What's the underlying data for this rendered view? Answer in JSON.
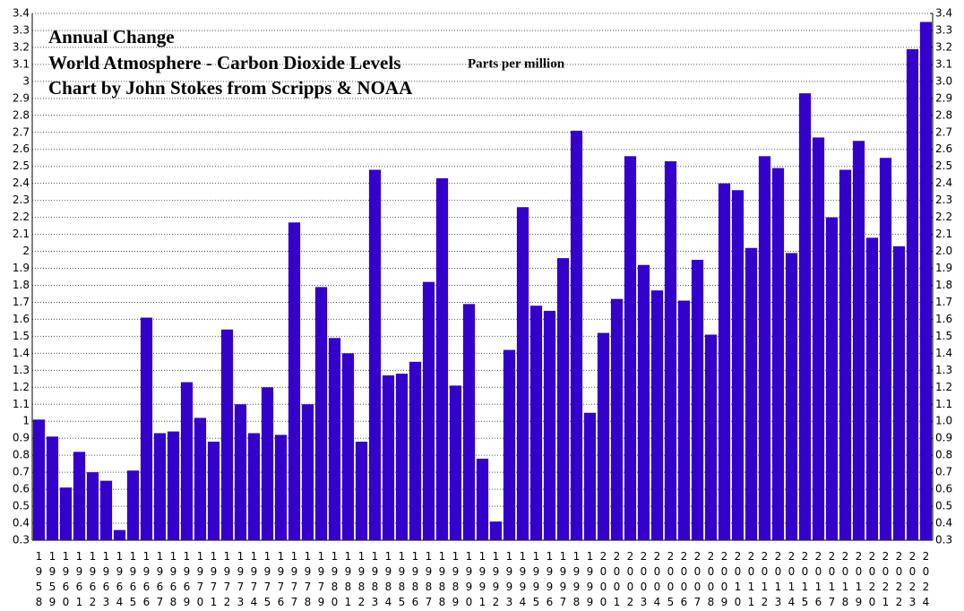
{
  "chart_data": {
    "type": "bar",
    "title": "Annual Change",
    "subtitle": "World Atmosphere - Carbon Dioxide Levels",
    "unit_label": "Parts per million",
    "credit": "Chart by John Stokes from Scripps & NOAA",
    "categories": [
      "1958",
      "1959",
      "1960",
      "1961",
      "1962",
      "1963",
      "1964",
      "1965",
      "1966",
      "1967",
      "1968",
      "1969",
      "1970",
      "1971",
      "1972",
      "1973",
      "1974",
      "1975",
      "1976",
      "1977",
      "1978",
      "1979",
      "1980",
      "1981",
      "1982",
      "1983",
      "1984",
      "1985",
      "1986",
      "1987",
      "1988",
      "1989",
      "1990",
      "1991",
      "1992",
      "1993",
      "1994",
      "1995",
      "1996",
      "1997",
      "1998",
      "1999",
      "2000",
      "2001",
      "2002",
      "2003",
      "2004",
      "2005",
      "2006",
      "2007",
      "2008",
      "2009",
      "2010",
      "2011",
      "2012",
      "2013",
      "2014",
      "2015",
      "2016",
      "2017",
      "2018",
      "2019",
      "2020",
      "2021",
      "2022",
      "2023",
      "2024"
    ],
    "values": [
      1.01,
      0.91,
      0.61,
      0.82,
      0.7,
      0.65,
      0.36,
      0.71,
      1.61,
      0.93,
      0.94,
      1.23,
      1.02,
      0.88,
      1.54,
      1.1,
      0.93,
      1.2,
      0.92,
      2.17,
      1.1,
      1.79,
      1.49,
      1.4,
      0.88,
      2.48,
      1.27,
      1.28,
      1.35,
      1.82,
      2.43,
      1.21,
      1.69,
      0.78,
      0.41,
      1.42,
      2.26,
      1.68,
      1.65,
      1.96,
      2.71,
      1.05,
      1.52,
      1.72,
      2.56,
      1.92,
      1.77,
      2.53,
      1.71,
      1.95,
      1.51,
      2.4,
      2.36,
      2.02,
      2.56,
      2.49,
      1.99,
      2.93,
      2.67,
      2.2,
      2.48,
      2.65,
      2.08,
      2.55,
      2.03,
      3.19,
      3.35
    ],
    "color": "#3300cc",
    "ylim": [
      0.3,
      3.4
    ],
    "yticks": [
      0.3,
      0.4,
      0.5,
      0.6,
      0.7,
      0.8,
      0.9,
      1,
      1.1,
      1.2,
      1.3,
      1.4,
      1.5,
      1.6,
      1.7,
      1.8,
      1.9,
      2,
      2.1,
      2.2,
      2.3,
      2.4,
      2.5,
      2.6,
      2.7,
      2.8,
      2.9,
      3,
      3.1,
      3.2,
      3.3,
      3.4
    ],
    "y2lim": [
      0.3,
      3.4
    ],
    "y2ticks": [
      0.3,
      0.4,
      0.5,
      0.6,
      0.7,
      0.8,
      0.9,
      {
        "value": 1,
        "label": "1.0"
      },
      1.1,
      1.2,
      1.3,
      1.4,
      1.5,
      1.6,
      1.7,
      1.8,
      1.9,
      {
        "value": 2,
        "label": "2.0"
      },
      2.1,
      2.2,
      2.3,
      2.4,
      2.5,
      2.6,
      2.7,
      2.8,
      2.9,
      {
        "value": 3,
        "label": "3.0"
      },
      3.1,
      3.2,
      3.3,
      3.4
    ],
    "grid": true
  }
}
